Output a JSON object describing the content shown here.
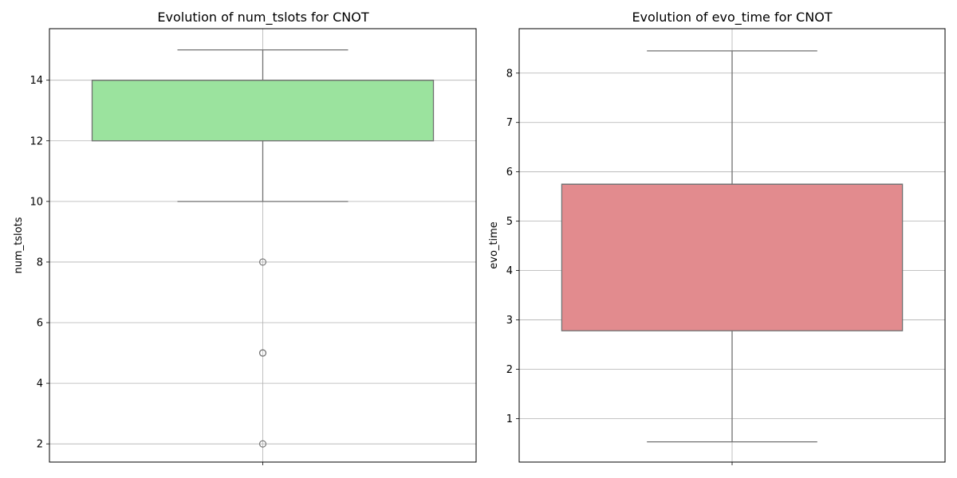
{
  "chart_data": [
    {
      "type": "box",
      "title": "Evolution of num_tslots for CNOT",
      "xlabel": "",
      "ylabel": "num_tslots",
      "ylim": [
        1.4,
        15.7
      ],
      "yticks": [
        2,
        4,
        6,
        8,
        10,
        12,
        14
      ],
      "grid": true,
      "box": {
        "whisker_low": 10,
        "q1": 12,
        "median": 14,
        "q3": 14,
        "whisker_high": 15,
        "outliers": [
          8,
          5,
          5,
          2
        ]
      },
      "color": "#9be39e"
    },
    {
      "type": "box",
      "title": "Evolution of evo_time for CNOT",
      "xlabel": "",
      "ylabel": "evo_time",
      "ylim": [
        0.12,
        8.9
      ],
      "yticks": [
        1,
        2,
        3,
        4,
        5,
        6,
        7,
        8
      ],
      "grid": true,
      "box": {
        "whisker_low": 0.53,
        "q1": 2.78,
        "median": 5.75,
        "q3": 5.75,
        "whisker_high": 8.45,
        "outliers": []
      },
      "color": "#e28b8e"
    }
  ]
}
